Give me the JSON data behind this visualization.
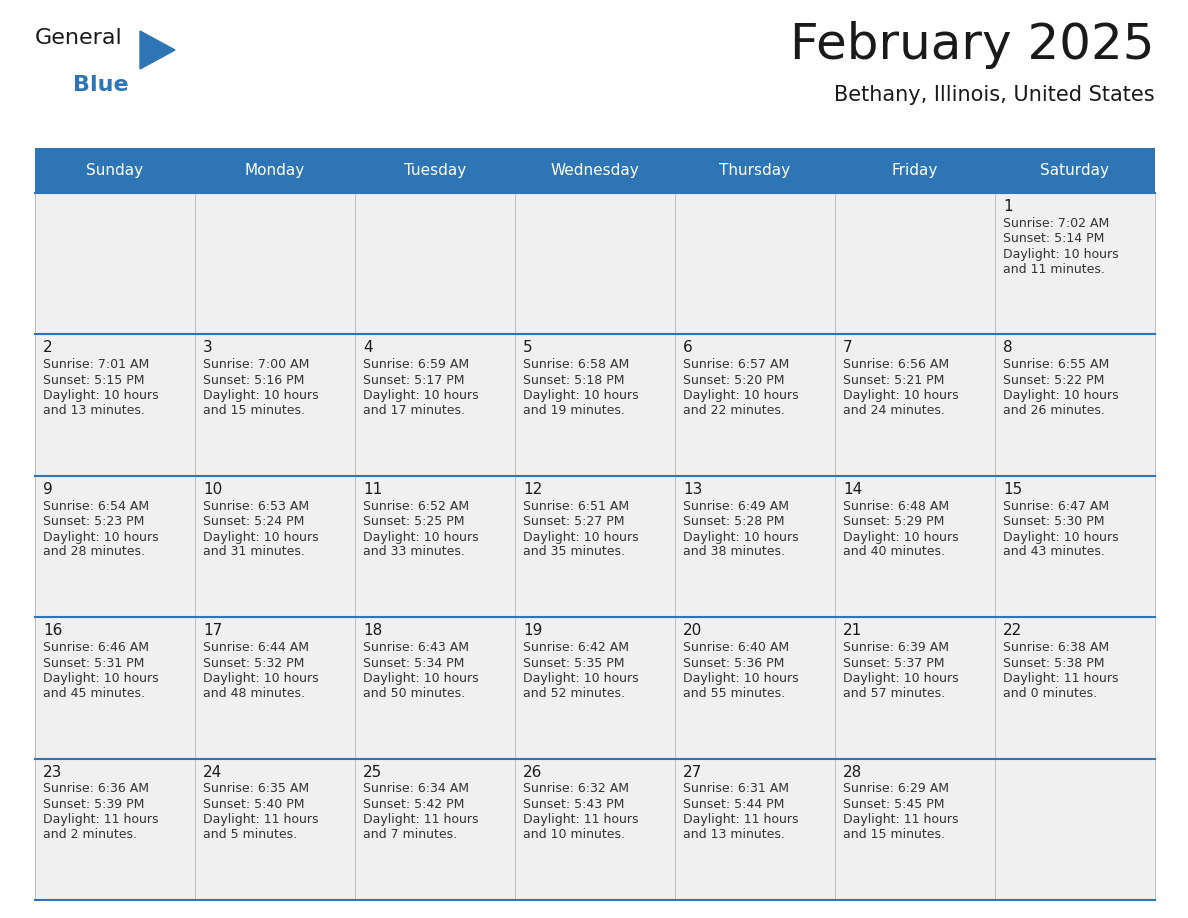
{
  "title": "February 2025",
  "subtitle": "Bethany, Illinois, United States",
  "header_bg": "#2E75B6",
  "header_text_color": "#FFFFFF",
  "cell_bg": "#F0F0F0",
  "border_color": "#2E75B6",
  "thin_border_color": "#AAAAAA",
  "day_names": [
    "Sunday",
    "Monday",
    "Tuesday",
    "Wednesday",
    "Thursday",
    "Friday",
    "Saturday"
  ],
  "days_data": [
    {
      "day": 1,
      "col": 6,
      "row": 0,
      "sunrise": "7:02 AM",
      "sunset": "5:14 PM",
      "daylight": "10 hours\nand 11 minutes."
    },
    {
      "day": 2,
      "col": 0,
      "row": 1,
      "sunrise": "7:01 AM",
      "sunset": "5:15 PM",
      "daylight": "10 hours\nand 13 minutes."
    },
    {
      "day": 3,
      "col": 1,
      "row": 1,
      "sunrise": "7:00 AM",
      "sunset": "5:16 PM",
      "daylight": "10 hours\nand 15 minutes."
    },
    {
      "day": 4,
      "col": 2,
      "row": 1,
      "sunrise": "6:59 AM",
      "sunset": "5:17 PM",
      "daylight": "10 hours\nand 17 minutes."
    },
    {
      "day": 5,
      "col": 3,
      "row": 1,
      "sunrise": "6:58 AM",
      "sunset": "5:18 PM",
      "daylight": "10 hours\nand 19 minutes."
    },
    {
      "day": 6,
      "col": 4,
      "row": 1,
      "sunrise": "6:57 AM",
      "sunset": "5:20 PM",
      "daylight": "10 hours\nand 22 minutes."
    },
    {
      "day": 7,
      "col": 5,
      "row": 1,
      "sunrise": "6:56 AM",
      "sunset": "5:21 PM",
      "daylight": "10 hours\nand 24 minutes."
    },
    {
      "day": 8,
      "col": 6,
      "row": 1,
      "sunrise": "6:55 AM",
      "sunset": "5:22 PM",
      "daylight": "10 hours\nand 26 minutes."
    },
    {
      "day": 9,
      "col": 0,
      "row": 2,
      "sunrise": "6:54 AM",
      "sunset": "5:23 PM",
      "daylight": "10 hours\nand 28 minutes."
    },
    {
      "day": 10,
      "col": 1,
      "row": 2,
      "sunrise": "6:53 AM",
      "sunset": "5:24 PM",
      "daylight": "10 hours\nand 31 minutes."
    },
    {
      "day": 11,
      "col": 2,
      "row": 2,
      "sunrise": "6:52 AM",
      "sunset": "5:25 PM",
      "daylight": "10 hours\nand 33 minutes."
    },
    {
      "day": 12,
      "col": 3,
      "row": 2,
      "sunrise": "6:51 AM",
      "sunset": "5:27 PM",
      "daylight": "10 hours\nand 35 minutes."
    },
    {
      "day": 13,
      "col": 4,
      "row": 2,
      "sunrise": "6:49 AM",
      "sunset": "5:28 PM",
      "daylight": "10 hours\nand 38 minutes."
    },
    {
      "day": 14,
      "col": 5,
      "row": 2,
      "sunrise": "6:48 AM",
      "sunset": "5:29 PM",
      "daylight": "10 hours\nand 40 minutes."
    },
    {
      "day": 15,
      "col": 6,
      "row": 2,
      "sunrise": "6:47 AM",
      "sunset": "5:30 PM",
      "daylight": "10 hours\nand 43 minutes."
    },
    {
      "day": 16,
      "col": 0,
      "row": 3,
      "sunrise": "6:46 AM",
      "sunset": "5:31 PM",
      "daylight": "10 hours\nand 45 minutes."
    },
    {
      "day": 17,
      "col": 1,
      "row": 3,
      "sunrise": "6:44 AM",
      "sunset": "5:32 PM",
      "daylight": "10 hours\nand 48 minutes."
    },
    {
      "day": 18,
      "col": 2,
      "row": 3,
      "sunrise": "6:43 AM",
      "sunset": "5:34 PM",
      "daylight": "10 hours\nand 50 minutes."
    },
    {
      "day": 19,
      "col": 3,
      "row": 3,
      "sunrise": "6:42 AM",
      "sunset": "5:35 PM",
      "daylight": "10 hours\nand 52 minutes."
    },
    {
      "day": 20,
      "col": 4,
      "row": 3,
      "sunrise": "6:40 AM",
      "sunset": "5:36 PM",
      "daylight": "10 hours\nand 55 minutes."
    },
    {
      "day": 21,
      "col": 5,
      "row": 3,
      "sunrise": "6:39 AM",
      "sunset": "5:37 PM",
      "daylight": "10 hours\nand 57 minutes."
    },
    {
      "day": 22,
      "col": 6,
      "row": 3,
      "sunrise": "6:38 AM",
      "sunset": "5:38 PM",
      "daylight": "11 hours\nand 0 minutes."
    },
    {
      "day": 23,
      "col": 0,
      "row": 4,
      "sunrise": "6:36 AM",
      "sunset": "5:39 PM",
      "daylight": "11 hours\nand 2 minutes."
    },
    {
      "day": 24,
      "col": 1,
      "row": 4,
      "sunrise": "6:35 AM",
      "sunset": "5:40 PM",
      "daylight": "11 hours\nand 5 minutes."
    },
    {
      "day": 25,
      "col": 2,
      "row": 4,
      "sunrise": "6:34 AM",
      "sunset": "5:42 PM",
      "daylight": "11 hours\nand 7 minutes."
    },
    {
      "day": 26,
      "col": 3,
      "row": 4,
      "sunrise": "6:32 AM",
      "sunset": "5:43 PM",
      "daylight": "11 hours\nand 10 minutes."
    },
    {
      "day": 27,
      "col": 4,
      "row": 4,
      "sunrise": "6:31 AM",
      "sunset": "5:44 PM",
      "daylight": "11 hours\nand 13 minutes."
    },
    {
      "day": 28,
      "col": 5,
      "row": 4,
      "sunrise": "6:29 AM",
      "sunset": "5:45 PM",
      "daylight": "11 hours\nand 15 minutes."
    }
  ],
  "n_rows": 5,
  "n_cols": 7,
  "logo_text1": "General",
  "logo_text2": "Blue",
  "logo_triangle_color": "#2E75B6",
  "title_color": "#1a1a1a",
  "subtitle_color": "#1a1a1a",
  "text_color": "#333333",
  "day_num_color": "#1a1a1a",
  "title_fontsize": 36,
  "subtitle_fontsize": 15,
  "day_header_fontsize": 11,
  "day_num_fontsize": 11,
  "cell_text_fontsize": 9
}
